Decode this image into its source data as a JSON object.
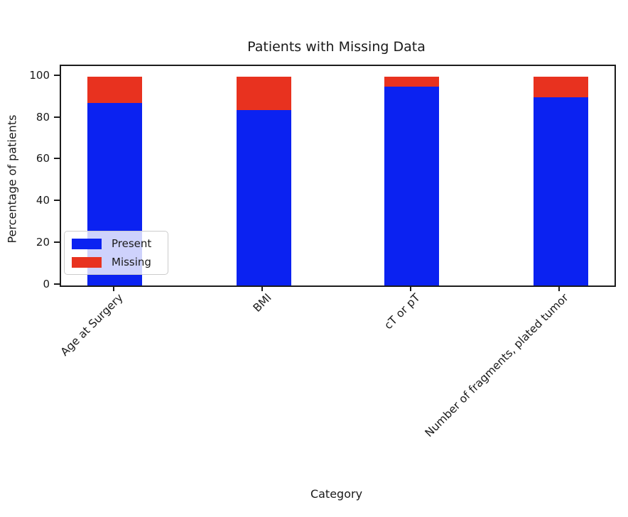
{
  "chart_data": {
    "type": "bar",
    "stacked": true,
    "title": "Patients with Missing Data",
    "xlabel": "Category",
    "ylabel": "Percentage of patients",
    "categories": [
      "Age at Surgery",
      "BMI",
      "cT or pT",
      "Number of fragments, plated tumor"
    ],
    "series": [
      {
        "name": "Present",
        "color": "#0b22f1",
        "values": [
          87.5,
          84,
          95,
          90
        ]
      },
      {
        "name": "Missing",
        "color": "#e8321f",
        "values": [
          12.5,
          16,
          5,
          10
        ]
      }
    ],
    "ylim": [
      0,
      105
    ],
    "yticks": [
      0,
      20,
      40,
      60,
      80,
      100
    ],
    "x_tick_rotation": 45,
    "grid": false,
    "legend": {
      "position": "lower left",
      "entries": [
        "Present",
        "Missing"
      ]
    },
    "spine_color": "#1c1c1c",
    "text_color": "#1a1a1a"
  }
}
